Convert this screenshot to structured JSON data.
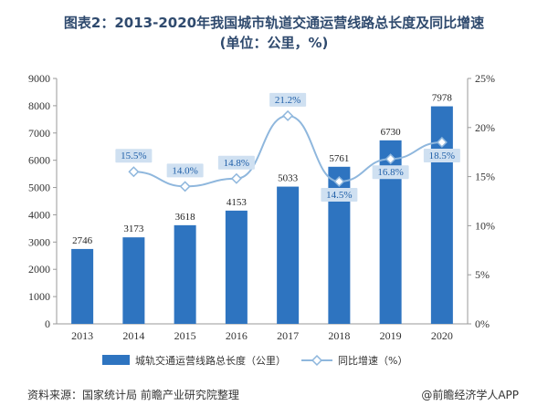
{
  "chart_data": {
    "type": "bar+line",
    "title": "图表2：2013-2020年我国城市轨道交通运营线路总长度及同比增速",
    "subtitle": "(单位：公里，%)",
    "categories": [
      "2013",
      "2014",
      "2015",
      "2016",
      "2017",
      "2018",
      "2019",
      "2020"
    ],
    "series": [
      {
        "name": "城轨交通运营线路总长度（公里）",
        "kind": "bar",
        "axis": "left",
        "values": [
          2746,
          3173,
          3618,
          4153,
          5033,
          5761,
          6730,
          7978
        ],
        "labels": [
          "2746",
          "3173",
          "3618",
          "4153",
          "5033",
          "5761",
          "6730",
          "7978"
        ]
      },
      {
        "name": "同比增速（%）",
        "kind": "line",
        "axis": "right",
        "values": [
          null,
          15.5,
          14.0,
          14.8,
          21.2,
          14.5,
          16.8,
          18.5
        ],
        "labels": [
          "",
          "15.5%",
          "14.0%",
          "14.8%",
          "21.2%",
          "14.5%",
          "16.8%",
          "18.5%"
        ]
      }
    ],
    "y_left": {
      "range": [
        0,
        9000
      ],
      "ticks": [
        "0",
        "1000",
        "2000",
        "3000",
        "4000",
        "5000",
        "6000",
        "7000",
        "8000",
        "9000"
      ]
    },
    "y_right": {
      "range": [
        0,
        25
      ],
      "ticks": [
        "0%",
        "5%",
        "10%",
        "15%",
        "20%",
        "25%"
      ]
    },
    "grid": false,
    "legend": "bottom",
    "colors": {
      "bar": "#2e74c0",
      "line": "#8fb7dd",
      "marker": "#ffffff",
      "label_box": "#cfe0f1"
    }
  },
  "footer": {
    "source": "资料来源：国家统计局 前瞻产业研究院整理",
    "credit": "@前瞻经济学人APP"
  }
}
